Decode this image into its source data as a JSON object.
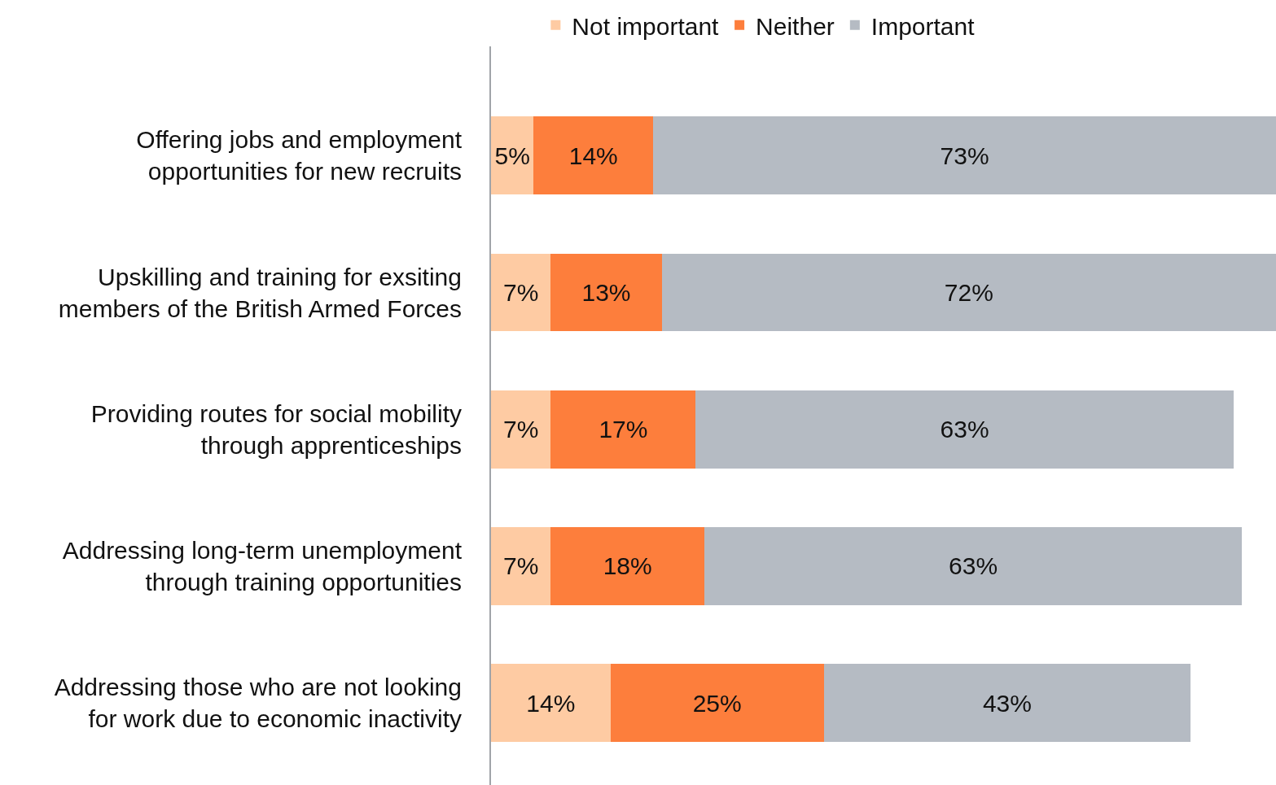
{
  "chart_data": {
    "type": "bar",
    "orientation": "horizontal",
    "stacked": true,
    "legend": "top",
    "categories": [
      "Offering jobs and employment\nopportunities for new recruits",
      "Upskilling and training for exsiting\nmembers of the British Armed Forces",
      "Providing routes for social mobility\nthrough apprenticeships",
      "Addressing long-term unemployment\nthrough training opportunities",
      "Addressing those who are not looking\nfor work due to economic inactivity"
    ],
    "xlim": [
      0,
      92
    ],
    "series": [
      {
        "name": "Not important",
        "color": "#fecba3",
        "values": [
          5,
          7,
          7,
          7,
          14
        ],
        "value_labels": [
          "5%",
          "7%",
          "7%",
          "7%",
          "14%"
        ]
      },
      {
        "name": "Neither",
        "color": "#fd7e3c",
        "values": [
          14,
          13,
          17,
          18,
          25
        ],
        "value_labels": [
          "14%",
          "13%",
          "17%",
          "18%",
          "25%"
        ]
      },
      {
        "name": "Important",
        "color": "#b5bbc3",
        "values": [
          73,
          72,
          63,
          63,
          43
        ],
        "value_labels": [
          "73%",
          "72%",
          "63%",
          "63%",
          "43%"
        ]
      }
    ]
  }
}
